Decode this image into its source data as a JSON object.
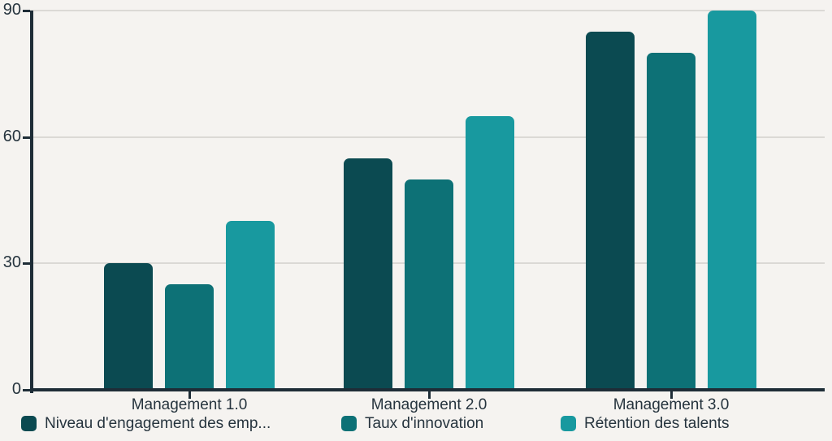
{
  "chart_data": {
    "type": "bar",
    "categories": [
      "Management 1.0",
      "Management 2.0",
      "Management 3.0"
    ],
    "series": [
      {
        "name": "Niveau d'engagement des emp...",
        "color": "#0b4a51",
        "values": [
          30,
          55,
          85
        ]
      },
      {
        "name": "Taux d'innovation",
        "color": "#0d7176",
        "values": [
          25,
          50,
          80
        ]
      },
      {
        "name": "Rétention des talents",
        "color": "#18999f",
        "values": [
          40,
          65,
          90
        ]
      }
    ],
    "yticks": [
      0,
      30,
      60,
      90
    ],
    "ylim": [
      0,
      90
    ],
    "grid": true,
    "legend_position": "bottom"
  },
  "style": {
    "background": "#f5f3f0",
    "axis_color": "#1e2d37",
    "grid_color": "#dbd9d5",
    "text_color": "#26343e",
    "series_colors": [
      "#0b4a51",
      "#0d7176",
      "#18999f"
    ]
  }
}
